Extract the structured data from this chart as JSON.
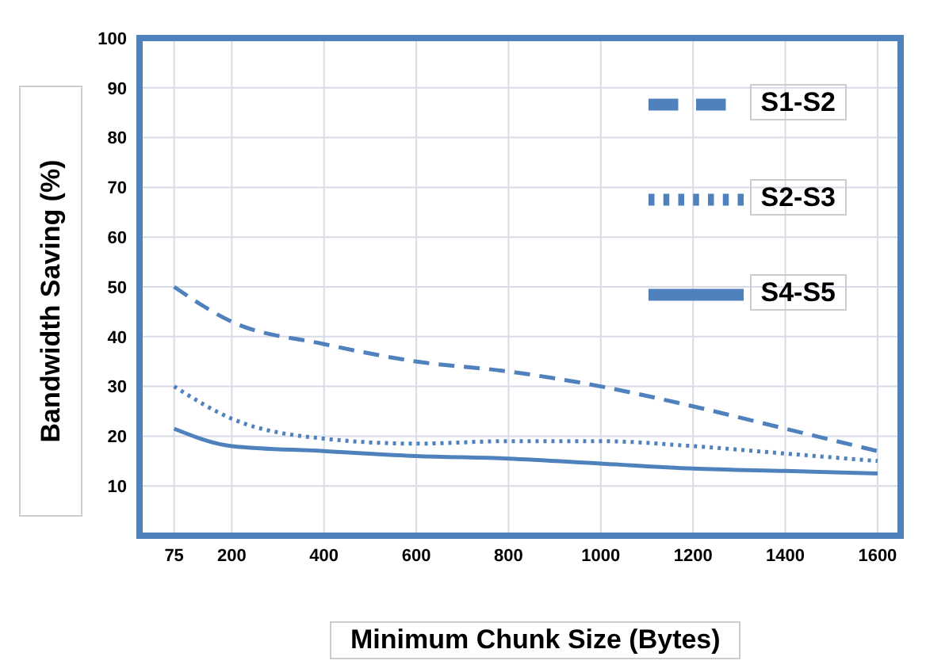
{
  "chart_data": {
    "type": "line",
    "xlabel": "Minimum Chunk Size (Bytes)",
    "ylabel": "Bandwidth Saving (%)",
    "x": [
      75,
      200,
      400,
      600,
      800,
      1000,
      1200,
      1400,
      1600
    ],
    "series": [
      {
        "name": "S1-S2",
        "color": "#4f81bd",
        "line_style": "dashed",
        "values": [
          50,
          43,
          38.5,
          35,
          33,
          30,
          26,
          21.5,
          17
        ]
      },
      {
        "name": "S2-S3",
        "color": "#4f81bd",
        "line_style": "dotted",
        "values": [
          30,
          23.5,
          19.5,
          18.5,
          19,
          19,
          18,
          16.5,
          15
        ]
      },
      {
        "name": "S4-S5",
        "color": "#4f81bd",
        "line_style": "solid",
        "values": [
          21.5,
          18,
          17,
          16,
          15.5,
          14.5,
          13.5,
          13,
          12.5
        ]
      }
    ],
    "xlim": [
      0,
      1650
    ],
    "xticks": [
      75,
      200,
      400,
      600,
      800,
      1000,
      1200,
      1400,
      1600
    ],
    "ylim": [
      0,
      100
    ],
    "yticks": [
      10,
      20,
      30,
      40,
      50,
      60,
      70,
      80,
      90,
      100
    ],
    "grid": true,
    "legend": "top right",
    "marker": "none"
  }
}
